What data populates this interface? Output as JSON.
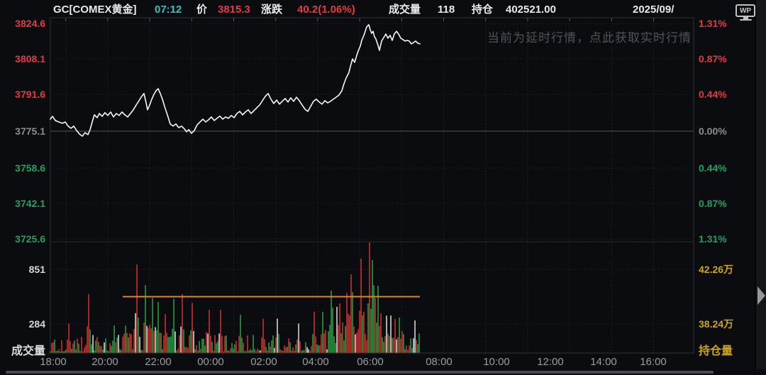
{
  "header": {
    "symbol": "GC[COMEX黄金]",
    "time": "07:12",
    "price_label": "价",
    "price": "3815.3",
    "change_label": "涨跌",
    "change": "40.2(1.06%)",
    "volume_label": "成交量",
    "volume": "118",
    "oi_label": "持仓",
    "oi": "402521.00",
    "date": "2025/09/",
    "logo_text": "WP"
  },
  "notice": "当前为延时行情，点此获取实时行情",
  "side_panel": {
    "expand_arrow": "right-triangle"
  },
  "colors": {
    "up_red": "#e8393d",
    "down_green": "#1ea25f",
    "neutral_gray": "#8a8d92",
    "teal_time": "#2fc4c4",
    "gold_label": "#cfa51b",
    "oi_line_orange": "#e1861c",
    "price_line_white": "#f7f8fa",
    "volume_red": "#dc322c",
    "volume_green": "#25a73f",
    "volume_white": "#e0e1e3",
    "background": "#0b0c10"
  },
  "chart_data": {
    "type": "line",
    "title": "GC COMEX黄金 盘中分时走势(延时行情)",
    "x_ticks": [
      "18:00",
      "20:00",
      "22:00",
      "00:00",
      "02:00",
      "04:00",
      "06:00",
      "08:00",
      "10:00",
      "12:00",
      "14:00",
      "16:00"
    ],
    "price_axis": {
      "labels": [
        {
          "text": "3824.6",
          "tone": "up"
        },
        {
          "text": "3808.1",
          "tone": "up"
        },
        {
          "text": "3791.6",
          "tone": "up"
        },
        {
          "text": "3775.1",
          "tone": "flat"
        },
        {
          "text": "3758.6",
          "tone": "down"
        },
        {
          "text": "3742.1",
          "tone": "down"
        },
        {
          "text": "3725.6",
          "tone": "down"
        }
      ],
      "values": [
        3824.6,
        3808.1,
        3791.6,
        3775.1,
        3758.6,
        3742.1,
        3725.6
      ],
      "prev_close": 3775.1
    },
    "pct_axis": {
      "labels": [
        {
          "text": "1.31%",
          "tone": "up"
        },
        {
          "text": "0.87%",
          "tone": "up"
        },
        {
          "text": "0.44%",
          "tone": "up"
        },
        {
          "text": "0.00%",
          "tone": "flat"
        },
        {
          "text": "0.44%",
          "tone": "down"
        },
        {
          "text": "0.87%",
          "tone": "down"
        },
        {
          "text": "1.31%",
          "tone": "down"
        }
      ],
      "values": [
        1.31,
        0.87,
        0.44,
        0.0,
        -0.44,
        -0.87,
        -1.31
      ]
    },
    "volume_axis": {
      "left_labels": [
        "851",
        "284"
      ],
      "left_values": [
        851,
        284
      ],
      "right_labels": [
        "42.26万",
        "38.24万"
      ],
      "right_values": [
        422600,
        382400
      ],
      "pane_label_left": "成交量",
      "pane_label_right": "持仓量"
    },
    "open_interest": {
      "value": 402521,
      "display": "40.25万"
    },
    "price_series": {
      "note": "pairs of [x_px, price]; session 18:00 -> 07:12, last=3815.3",
      "points": [
        [
          71,
          3780.6
        ],
        [
          74,
          3781.9
        ],
        [
          78,
          3780.0
        ],
        [
          83,
          3779.3
        ],
        [
          88,
          3778.7
        ],
        [
          92,
          3779.3
        ],
        [
          96,
          3777.4
        ],
        [
          100,
          3776.4
        ],
        [
          104,
          3777.4
        ],
        [
          108,
          3775.4
        ],
        [
          112,
          3773.8
        ],
        [
          116,
          3772.8
        ],
        [
          120,
          3774.4
        ],
        [
          124,
          3773.5
        ],
        [
          127,
          3775.8
        ],
        [
          130,
          3779.3
        ],
        [
          133,
          3782.6
        ],
        [
          137,
          3781.3
        ],
        [
          140,
          3783.2
        ],
        [
          144,
          3781.9
        ],
        [
          148,
          3783.6
        ],
        [
          152,
          3782.3
        ],
        [
          156,
          3783.9
        ],
        [
          160,
          3781.6
        ],
        [
          164,
          3783.2
        ],
        [
          168,
          3782.3
        ],
        [
          172,
          3783.9
        ],
        [
          176,
          3782.6
        ],
        [
          180,
          3781.6
        ],
        [
          184,
          3783.2
        ],
        [
          188,
          3784.9
        ],
        [
          192,
          3787.1
        ],
        [
          196,
          3789.1
        ],
        [
          199,
          3790.7
        ],
        [
          203,
          3792.4
        ],
        [
          206,
          3788.1
        ],
        [
          208,
          3784.9
        ],
        [
          211,
          3787.1
        ],
        [
          214,
          3789.8
        ],
        [
          217,
          3792.0
        ],
        [
          220,
          3793.7
        ],
        [
          223,
          3794.6
        ],
        [
          226,
          3792.4
        ],
        [
          229,
          3789.8
        ],
        [
          232,
          3786.5
        ],
        [
          236,
          3782.6
        ],
        [
          240,
          3778.4
        ],
        [
          244,
          3777.4
        ],
        [
          248,
          3778.4
        ],
        [
          252,
          3776.7
        ],
        [
          256,
          3777.4
        ],
        [
          260,
          3776.1
        ],
        [
          263,
          3774.8
        ],
        [
          266,
          3775.8
        ],
        [
          270,
          3774.1
        ],
        [
          274,
          3775.4
        ],
        [
          278,
          3778.0
        ],
        [
          282,
          3779.3
        ],
        [
          286,
          3780.6
        ],
        [
          290,
          3779.3
        ],
        [
          294,
          3780.3
        ],
        [
          298,
          3781.6
        ],
        [
          302,
          3780.0
        ],
        [
          306,
          3781.0
        ],
        [
          310,
          3782.0
        ],
        [
          314,
          3780.6
        ],
        [
          318,
          3781.6
        ],
        [
          322,
          3781.0
        ],
        [
          326,
          3782.3
        ],
        [
          330,
          3781.3
        ],
        [
          334,
          3783.2
        ],
        [
          338,
          3784.2
        ],
        [
          342,
          3782.6
        ],
        [
          346,
          3783.9
        ],
        [
          350,
          3784.9
        ],
        [
          354,
          3783.2
        ],
        [
          358,
          3784.5
        ],
        [
          362,
          3785.8
        ],
        [
          366,
          3787.1
        ],
        [
          370,
          3789.1
        ],
        [
          374,
          3791.1
        ],
        [
          378,
          3792.4
        ],
        [
          382,
          3789.8
        ],
        [
          386,
          3787.8
        ],
        [
          390,
          3789.4
        ],
        [
          394,
          3787.5
        ],
        [
          398,
          3788.8
        ],
        [
          402,
          3790.1
        ],
        [
          406,
          3788.5
        ],
        [
          410,
          3790.4
        ],
        [
          414,
          3788.8
        ],
        [
          418,
          3790.7
        ],
        [
          422,
          3789.1
        ],
        [
          426,
          3787.1
        ],
        [
          430,
          3785.2
        ],
        [
          434,
          3784.2
        ],
        [
          438,
          3786.5
        ],
        [
          442,
          3788.8
        ],
        [
          446,
          3789.8
        ],
        [
          450,
          3788.5
        ],
        [
          454,
          3787.5
        ],
        [
          458,
          3789.1
        ],
        [
          462,
          3788.1
        ],
        [
          466,
          3788.8
        ],
        [
          470,
          3789.8
        ],
        [
          474,
          3790.7
        ],
        [
          478,
          3791.7
        ],
        [
          482,
          3793.7
        ],
        [
          485,
          3796.9
        ],
        [
          488,
          3799.5
        ],
        [
          492,
          3802.1
        ],
        [
          495,
          3806.0
        ],
        [
          497,
          3808.3
        ],
        [
          500,
          3806.7
        ],
        [
          503,
          3809.9
        ],
        [
          505,
          3811.9
        ],
        [
          508,
          3814.2
        ],
        [
          510,
          3816.8
        ],
        [
          513,
          3819.1
        ],
        [
          515,
          3821.0
        ],
        [
          517,
          3823.0
        ],
        [
          520,
          3824.0
        ],
        [
          522,
          3821.7
        ],
        [
          524,
          3820.0
        ],
        [
          526,
          3821.0
        ],
        [
          528,
          3818.4
        ],
        [
          530,
          3817.4
        ],
        [
          533,
          3814.5
        ],
        [
          535,
          3812.2
        ],
        [
          538,
          3816.5
        ],
        [
          541,
          3818.1
        ],
        [
          544,
          3819.7
        ],
        [
          547,
          3817.8
        ],
        [
          550,
          3819.1
        ],
        [
          553,
          3816.8
        ],
        [
          556,
          3819.7
        ],
        [
          559,
          3821.0
        ],
        [
          562,
          3819.7
        ],
        [
          565,
          3817.8
        ],
        [
          568,
          3817.2
        ],
        [
          571,
          3816.5
        ],
        [
          574,
          3816.8
        ],
        [
          577,
          3816.5
        ],
        [
          580,
          3815.2
        ],
        [
          583,
          3815.8
        ],
        [
          586,
          3816.5
        ],
        [
          589,
          3815.5
        ],
        [
          592,
          3815.2
        ]
      ]
    },
    "volume_series": {
      "note": "1-min bars 18:00-07:12; pinned spikes [x_px, contracts, color r|g|w], rest textured",
      "seed": 20250929,
      "spikes": [
        [
          96,
          300,
          "r"
        ],
        [
          125,
          600,
          "r"
        ],
        [
          160,
          280,
          "g"
        ],
        [
          193,
          900,
          "r"
        ],
        [
          205,
          690,
          "g"
        ],
        [
          215,
          560,
          "g"
        ],
        [
          222,
          520,
          "g"
        ],
        [
          232,
          395,
          "r"
        ],
        [
          245,
          550,
          "g"
        ],
        [
          257,
          600,
          "r"
        ],
        [
          270,
          510,
          "r"
        ],
        [
          295,
          440,
          "r"
        ],
        [
          310,
          440,
          "r"
        ],
        [
          338,
          390,
          "g"
        ],
        [
          370,
          350,
          "r"
        ],
        [
          390,
          350,
          "w"
        ],
        [
          420,
          300,
          "w"
        ],
        [
          442,
          420,
          "r"
        ],
        [
          455,
          420,
          "g"
        ],
        [
          466,
          635,
          "g"
        ],
        [
          479,
          505,
          "r"
        ],
        [
          488,
          610,
          "r"
        ],
        [
          494,
          800,
          "r"
        ],
        [
          497,
          620,
          "g"
        ],
        [
          508,
          960,
          "r"
        ],
        [
          513,
          420,
          "r"
        ],
        [
          520,
          1125,
          "r"
        ],
        [
          524,
          945,
          "g"
        ],
        [
          527,
          690,
          "g"
        ],
        [
          533,
          685,
          "g"
        ],
        [
          537,
          404,
          "r"
        ],
        [
          544,
          380,
          "w"
        ],
        [
          550,
          382,
          "w"
        ],
        [
          557,
          346,
          "r"
        ],
        [
          563,
          360,
          "g"
        ],
        [
          585,
          332,
          "w"
        ],
        [
          591,
          200,
          "g"
        ]
      ],
      "region_multipliers": [
        [
          120,
          0.9
        ],
        [
          170,
          1.0
        ],
        [
          230,
          1.6
        ],
        [
          300,
          1.3
        ],
        [
          370,
          1.0
        ],
        [
          440,
          1.1
        ],
        [
          465,
          1.4
        ],
        [
          535,
          2.0
        ],
        [
          570,
          1.3
        ],
        [
          999,
          1.0
        ]
      ]
    },
    "legend_position": "none",
    "grid": true
  }
}
